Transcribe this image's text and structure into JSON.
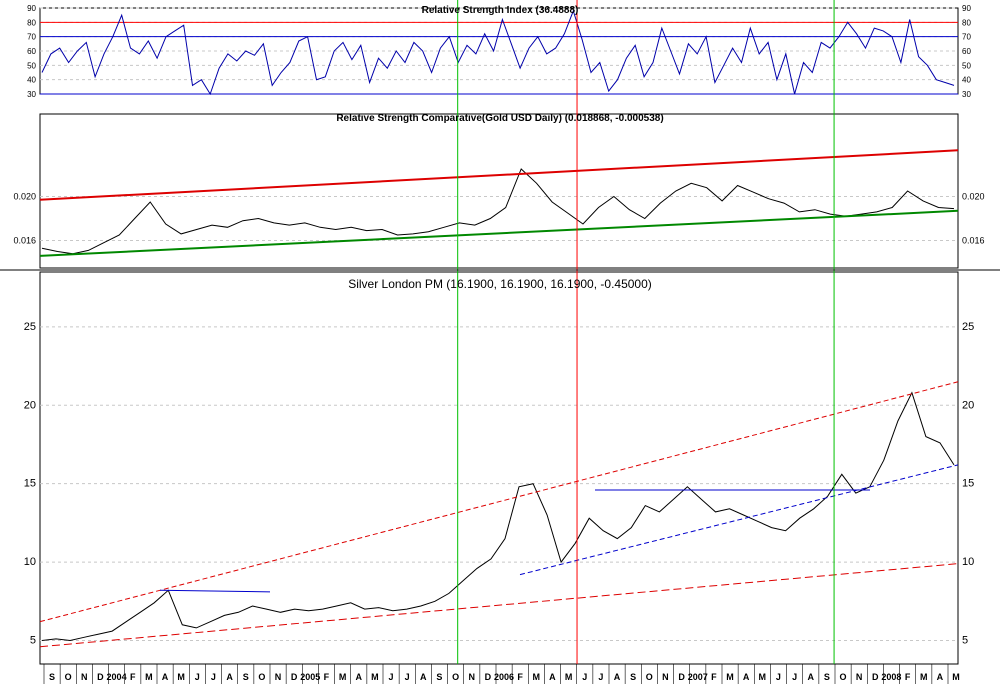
{
  "chart_data": [
    {
      "type": "line",
      "title": "Relative Strength Index (36.4888)",
      "ylim": [
        30,
        90
      ],
      "yticks": [
        30,
        40,
        50,
        60,
        70,
        80,
        90
      ],
      "reference_lines": [
        {
          "value": 80,
          "color": "#ff0000"
        },
        {
          "value": 70,
          "color": "#0000cc"
        },
        {
          "value": 30,
          "color": "#0000cc"
        }
      ],
      "series": [
        {
          "values": [
            45,
            58,
            62,
            52,
            60,
            66,
            42,
            58,
            70,
            85,
            62,
            58,
            67,
            55,
            70,
            74,
            78,
            36,
            40,
            30,
            48,
            58,
            53,
            60,
            57,
            65,
            36,
            45,
            52,
            67,
            70,
            40,
            42,
            60,
            66,
            54,
            64,
            38,
            55,
            48,
            60,
            52,
            66,
            60,
            45,
            62,
            70,
            52,
            64,
            58,
            72,
            60,
            82,
            65,
            48,
            62,
            70,
            58,
            62,
            72,
            88,
            68,
            45,
            52,
            32,
            40,
            55,
            64,
            42,
            52,
            76,
            60,
            44,
            65,
            58,
            70,
            38,
            50,
            62,
            52,
            76,
            58,
            66,
            40,
            58,
            30,
            52,
            45,
            66,
            62,
            70,
            80,
            72,
            62,
            76,
            74,
            70,
            52,
            82,
            56,
            50,
            40,
            38,
            36
          ]
        }
      ]
    },
    {
      "type": "line",
      "title": "Relative Strength Comparative(Gold USD Daily) (0.018868, -0.000538)",
      "ylim": [
        0.0135,
        0.0275
      ],
      "yticks": [
        0.016,
        0.02
      ],
      "series": [
        {
          "values": [
            0.0153,
            0.015,
            0.0148,
            0.0151,
            0.0158,
            0.0165,
            0.018,
            0.0195,
            0.0175,
            0.0166,
            0.017,
            0.0174,
            0.0172,
            0.0178,
            0.018,
            0.0176,
            0.0174,
            0.0176,
            0.0172,
            0.017,
            0.0172,
            0.0169,
            0.017,
            0.0165,
            0.0166,
            0.0168,
            0.0172,
            0.0176,
            0.0174,
            0.018,
            0.019,
            0.0225,
            0.0212,
            0.0195,
            0.0185,
            0.0175,
            0.019,
            0.02,
            0.0188,
            0.018,
            0.0194,
            0.0205,
            0.0212,
            0.0208,
            0.0196,
            0.021,
            0.0204,
            0.0198,
            0.0194,
            0.0186,
            0.0188,
            0.0184,
            0.0182,
            0.0184,
            0.0186,
            0.019,
            0.0205,
            0.0196,
            0.019,
            0.0189
          ]
        }
      ]
    },
    {
      "type": "line",
      "title": "Silver London PM (16.1900, 16.1900, 16.1900, -0.45000)",
      "ylim": [
        3.5,
        28.5
      ],
      "yticks": [
        5,
        10,
        15,
        20,
        25
      ],
      "x_tick_labels": [
        "S",
        "O",
        "N",
        "D",
        "2004",
        "F",
        "M",
        "A",
        "M",
        "J",
        "J",
        "A",
        "S",
        "O",
        "N",
        "D",
        "2005",
        "F",
        "M",
        "A",
        "M",
        "J",
        "J",
        "A",
        "S",
        "O",
        "N",
        "D",
        "2006",
        "F",
        "M",
        "A",
        "M",
        "J",
        "J",
        "A",
        "S",
        "O",
        "N",
        "D",
        "2007",
        "F",
        "M",
        "A",
        "M",
        "J",
        "J",
        "A",
        "S",
        "O",
        "N",
        "D",
        "2008",
        "F",
        "M",
        "A",
        "M"
      ],
      "series": [
        {
          "values": [
            5.0,
            5.1,
            5.0,
            5.2,
            5.4,
            5.6,
            6.2,
            6.8,
            7.4,
            8.2,
            6.0,
            5.8,
            6.2,
            6.6,
            6.8,
            7.2,
            7.0,
            6.8,
            7.0,
            6.9,
            7.0,
            7.2,
            7.4,
            7.0,
            7.1,
            6.9,
            7.0,
            7.2,
            7.5,
            8.0,
            8.8,
            9.6,
            10.2,
            11.5,
            14.8,
            15.0,
            13.0,
            10.0,
            11.2,
            12.8,
            12.0,
            11.5,
            12.2,
            13.6,
            13.2,
            14.0,
            14.8,
            14.0,
            13.2,
            13.4,
            13.0,
            12.6,
            12.2,
            12.0,
            12.8,
            13.4,
            14.2,
            15.6,
            14.4,
            14.8,
            16.5,
            19.0,
            20.8,
            18.0,
            17.6,
            16.2
          ]
        }
      ],
      "vertical_markers": [
        {
          "at": 0.455,
          "color": "#00c000"
        },
        {
          "at": 0.585,
          "color": "#ff0000"
        },
        {
          "at": 0.865,
          "color": "#00c000"
        }
      ]
    }
  ]
}
